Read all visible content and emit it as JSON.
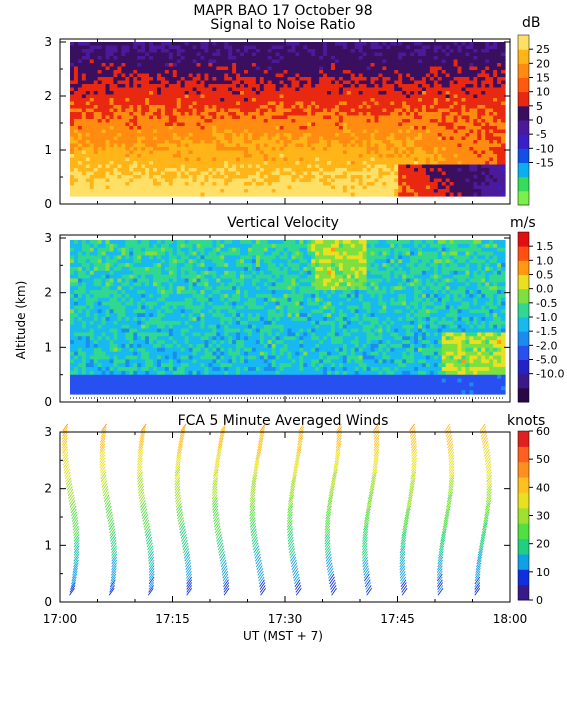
{
  "header": {
    "line1": "MAPR BAO 17 October 98",
    "line2": "Signal to Noise Ratio"
  },
  "colors": {
    "snr": [
      "#7cf04a",
      "#35dc5a",
      "#0aaff0",
      "#1050e6",
      "#3a1ec8",
      "#4a1a9a",
      "#3b0f5f",
      "#e82810",
      "#ff5a10",
      "#ff8c10",
      "#ffb418",
      "#ffe066"
    ],
    "vv": [
      "#2a0846",
      "#3a1a8a",
      "#2222c8",
      "#2850f0",
      "#1a8cf0",
      "#18b8f0",
      "#30d890",
      "#7ee040",
      "#e8e020",
      "#ff9a10",
      "#ff5010",
      "#e01010"
    ],
    "wind": [
      "#3a1a8a",
      "#1030e0",
      "#10a0e8",
      "#20d080",
      "#50e040",
      "#a0e030",
      "#e8e020",
      "#ffc020",
      "#ff9020",
      "#ff6020",
      "#e02020"
    ]
  },
  "chart_data": [
    {
      "type": "heatmap",
      "title": "Signal to Noise Ratio",
      "unit": "dB",
      "ylim": [
        0,
        3
      ],
      "yticks": [
        "0",
        "1",
        "2",
        "3"
      ],
      "colorbar": [
        "25",
        "20",
        "15",
        "10",
        "5",
        "0",
        "-5",
        "-10",
        "-15"
      ]
    },
    {
      "type": "heatmap",
      "title": "Vertical Velocity",
      "unit": "m/s",
      "ylabel": "Altitude (km)",
      "ylim": [
        0,
        3
      ],
      "yticks": [
        "0",
        "1",
        "2",
        "3"
      ],
      "colorbar": [
        "1.5",
        "1.0",
        "0.5",
        "0.0",
        "-0.5",
        "-1.0",
        "-1.5",
        "-2.0",
        "-5.0",
        "-10.0"
      ]
    },
    {
      "type": "scatter",
      "title": "FCA 5 Minute Averaged Winds",
      "unit": "knots",
      "ylim": [
        0,
        3
      ],
      "yticks": [
        "0",
        "1",
        "2",
        "3"
      ],
      "colorbar": [
        "60",
        "50",
        "40",
        "30",
        "20",
        "10",
        "0"
      ],
      "xlabel": "UT  (MST + 7)",
      "xticks": [
        "17:00",
        "17:15",
        "17:30",
        "17:45",
        "18:00"
      ],
      "profile_times_min": [
        0,
        5,
        10,
        15,
        20,
        25,
        30,
        35,
        40,
        45,
        50,
        55
      ]
    }
  ]
}
